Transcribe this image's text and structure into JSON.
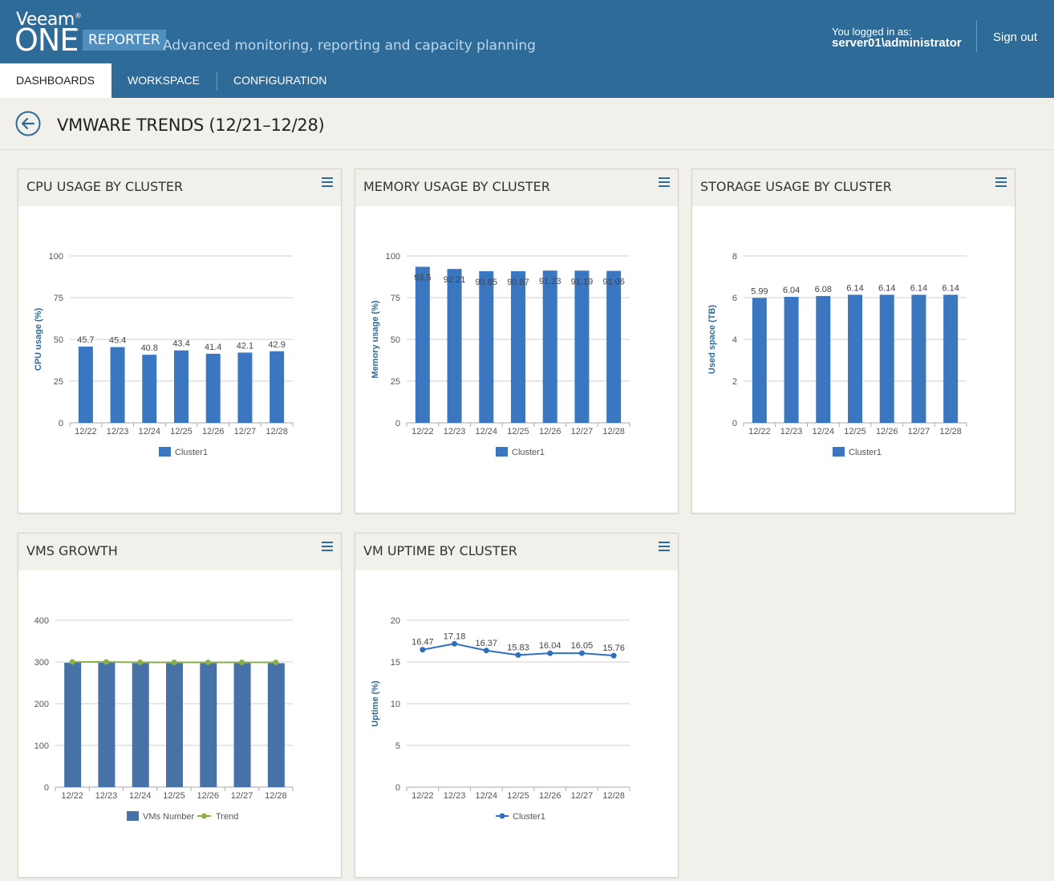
{
  "app": {
    "brand_top": "Veeam",
    "brand_main": "ONE",
    "brand_tm": "™",
    "brand_reg": "®",
    "product": "REPORTER",
    "tagline": "Advanced monitoring, reporting and capacity planning"
  },
  "user": {
    "label": "You logged in as:",
    "name": "server01\\administrator",
    "signout": "Sign out"
  },
  "nav": {
    "tabs": [
      {
        "label": "DASHBOARDS",
        "active": true
      },
      {
        "label": "WORKSPACE",
        "active": false
      },
      {
        "label": "CONFIGURATION",
        "active": false
      }
    ]
  },
  "page": {
    "title": "VMWARE TRENDS (12/21–12/28)"
  },
  "colors": {
    "bar": "#3a77c0",
    "bar_dark": "#4672a8",
    "trend": "#8ab04a",
    "line": "#2f6fc0",
    "header": "#2f6b98"
  },
  "panels": {
    "cpu": {
      "title": "CPU USAGE BY CLUSTER"
    },
    "memory": {
      "title": "MEMORY USAGE BY CLUSTER"
    },
    "storage": {
      "title": "STORAGE USAGE BY CLUSTER"
    },
    "vms": {
      "title": "VMS GROWTH"
    },
    "uptime": {
      "title": "VM UPTIME BY CLUSTER"
    }
  },
  "chart_data": [
    {
      "id": "cpu",
      "type": "bar",
      "title": "CPU USAGE BY CLUSTER",
      "categories": [
        "12/22",
        "12/23",
        "12/24",
        "12/25",
        "12/26",
        "12/27",
        "12/28"
      ],
      "series": [
        {
          "name": "Cluster1",
          "values": [
            45.7,
            45.4,
            40.8,
            43.4,
            41.4,
            42.1,
            42.9
          ]
        }
      ],
      "labels": [
        "45.7",
        "45.4",
        "40.8",
        "43.4",
        "41.4",
        "42.1",
        "42.9"
      ],
      "ylabel": "CPU usage (%)",
      "ylim": [
        0,
        100
      ],
      "yticks": [
        0,
        25,
        50,
        75,
        100
      ],
      "legend": [
        "Cluster1"
      ]
    },
    {
      "id": "memory",
      "type": "bar",
      "title": "MEMORY USAGE BY CLUSTER",
      "categories": [
        "12/22",
        "12/23",
        "12/24",
        "12/25",
        "12/26",
        "12/27",
        "12/28"
      ],
      "series": [
        {
          "name": "Cluster1",
          "values": [
            93.5,
            92.21,
            90.85,
            90.87,
            91.23,
            91.19,
            91.06
          ]
        }
      ],
      "labels": [
        "93.5",
        "92.21",
        "90.85",
        "90.87",
        "91.23",
        "91.19",
        "91.06"
      ],
      "ylabel": "Memory usage (%)",
      "ylim": [
        0,
        100
      ],
      "yticks": [
        0,
        25,
        50,
        75,
        100
      ],
      "legend": [
        "Cluster1"
      ]
    },
    {
      "id": "storage",
      "type": "bar",
      "title": "STORAGE USAGE BY CLUSTER",
      "categories": [
        "12/22",
        "12/23",
        "12/24",
        "12/25",
        "12/26",
        "12/27",
        "12/28"
      ],
      "series": [
        {
          "name": "Cluster1",
          "values": [
            5.99,
            6.04,
            6.08,
            6.14,
            6.14,
            6.14,
            6.14
          ]
        }
      ],
      "labels": [
        "5.99",
        "6.04",
        "6.08",
        "6.14",
        "6.14",
        "6.14",
        "6.14"
      ],
      "ylabel": "Used space (TB)",
      "ylim": [
        0,
        8
      ],
      "yticks": [
        0,
        2,
        4,
        6,
        8
      ],
      "legend": [
        "Cluster1"
      ]
    },
    {
      "id": "vms",
      "type": "bar",
      "title": "VMS GROWTH",
      "categories": [
        "12/22",
        "12/23",
        "12/24",
        "12/25",
        "12/26",
        "12/27",
        "12/28"
      ],
      "series": [
        {
          "name": "VMs Number",
          "values": [
            298,
            298,
            297,
            297,
            297,
            297,
            297
          ]
        },
        {
          "name": "Trend",
          "values": [
            300,
            300,
            299,
            299,
            299,
            299,
            299
          ]
        }
      ],
      "ylabel": "",
      "ylim": [
        0,
        400
      ],
      "yticks": [
        0,
        100,
        200,
        300,
        400
      ],
      "legend": [
        "VMs Number",
        "Trend"
      ]
    },
    {
      "id": "uptime",
      "type": "line",
      "title": "VM UPTIME BY CLUSTER",
      "categories": [
        "12/22",
        "12/23",
        "12/24",
        "12/25",
        "12/26",
        "12/27",
        "12/28"
      ],
      "series": [
        {
          "name": "Cluster1",
          "values": [
            16.47,
            17.18,
            16.37,
            15.83,
            16.04,
            16.05,
            15.76
          ]
        }
      ],
      "labels": [
        "16.47",
        "17.18",
        "16.37",
        "15.83",
        "16.04",
        "16.05",
        "15.76"
      ],
      "ylabel": "Uptime (%)",
      "ylim": [
        0,
        20
      ],
      "yticks": [
        0,
        5,
        10,
        15,
        20
      ],
      "legend": [
        "Cluster1"
      ]
    }
  ]
}
